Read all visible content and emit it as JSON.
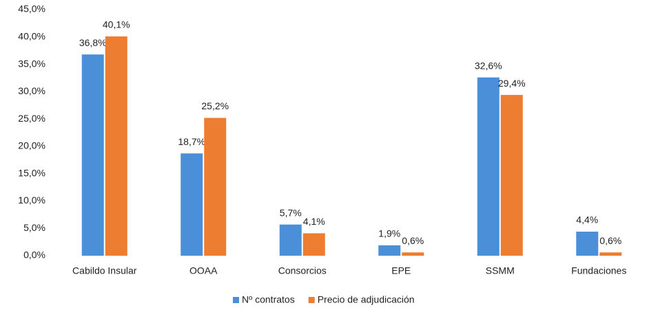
{
  "chart_data": {
    "type": "bar",
    "categories": [
      "Cabildo Insular",
      "OOAA",
      "Consorcios",
      "EPE",
      "SSMM",
      "Fundaciones"
    ],
    "series": [
      {
        "name": "Nº contratos",
        "color": "#4a8fd8",
        "values": [
          36.8,
          18.7,
          5.7,
          1.9,
          32.6,
          4.4
        ],
        "value_labels": [
          "36,8%",
          "18,7%",
          "5,7%",
          "1,9%",
          "32,6%",
          "4,4%"
        ]
      },
      {
        "name": "Precio de adjudicación",
        "color": "#ed7d31",
        "values": [
          40.1,
          25.2,
          4.1,
          0.6,
          29.4,
          0.6
        ],
        "value_labels": [
          "40,1%",
          "25,2%",
          "4,1%",
          "0,6%",
          "29,4%",
          "0,6%"
        ]
      }
    ],
    "ylim": [
      0,
      45
    ],
    "yticks": [
      {
        "value": 0,
        "label": "0,0%"
      },
      {
        "value": 5,
        "label": "5,0%"
      },
      {
        "value": 10,
        "label": "10,0%"
      },
      {
        "value": 15,
        "label": "15,0%"
      },
      {
        "value": 20,
        "label": "20,0%"
      },
      {
        "value": 25,
        "label": "25,0%"
      },
      {
        "value": 30,
        "label": "30,0%"
      },
      {
        "value": 35,
        "label": "35,0%"
      },
      {
        "value": 40,
        "label": "40,0%"
      },
      {
        "value": 45,
        "label": "45,0%"
      }
    ],
    "grid": false,
    "legend": "bottom"
  }
}
